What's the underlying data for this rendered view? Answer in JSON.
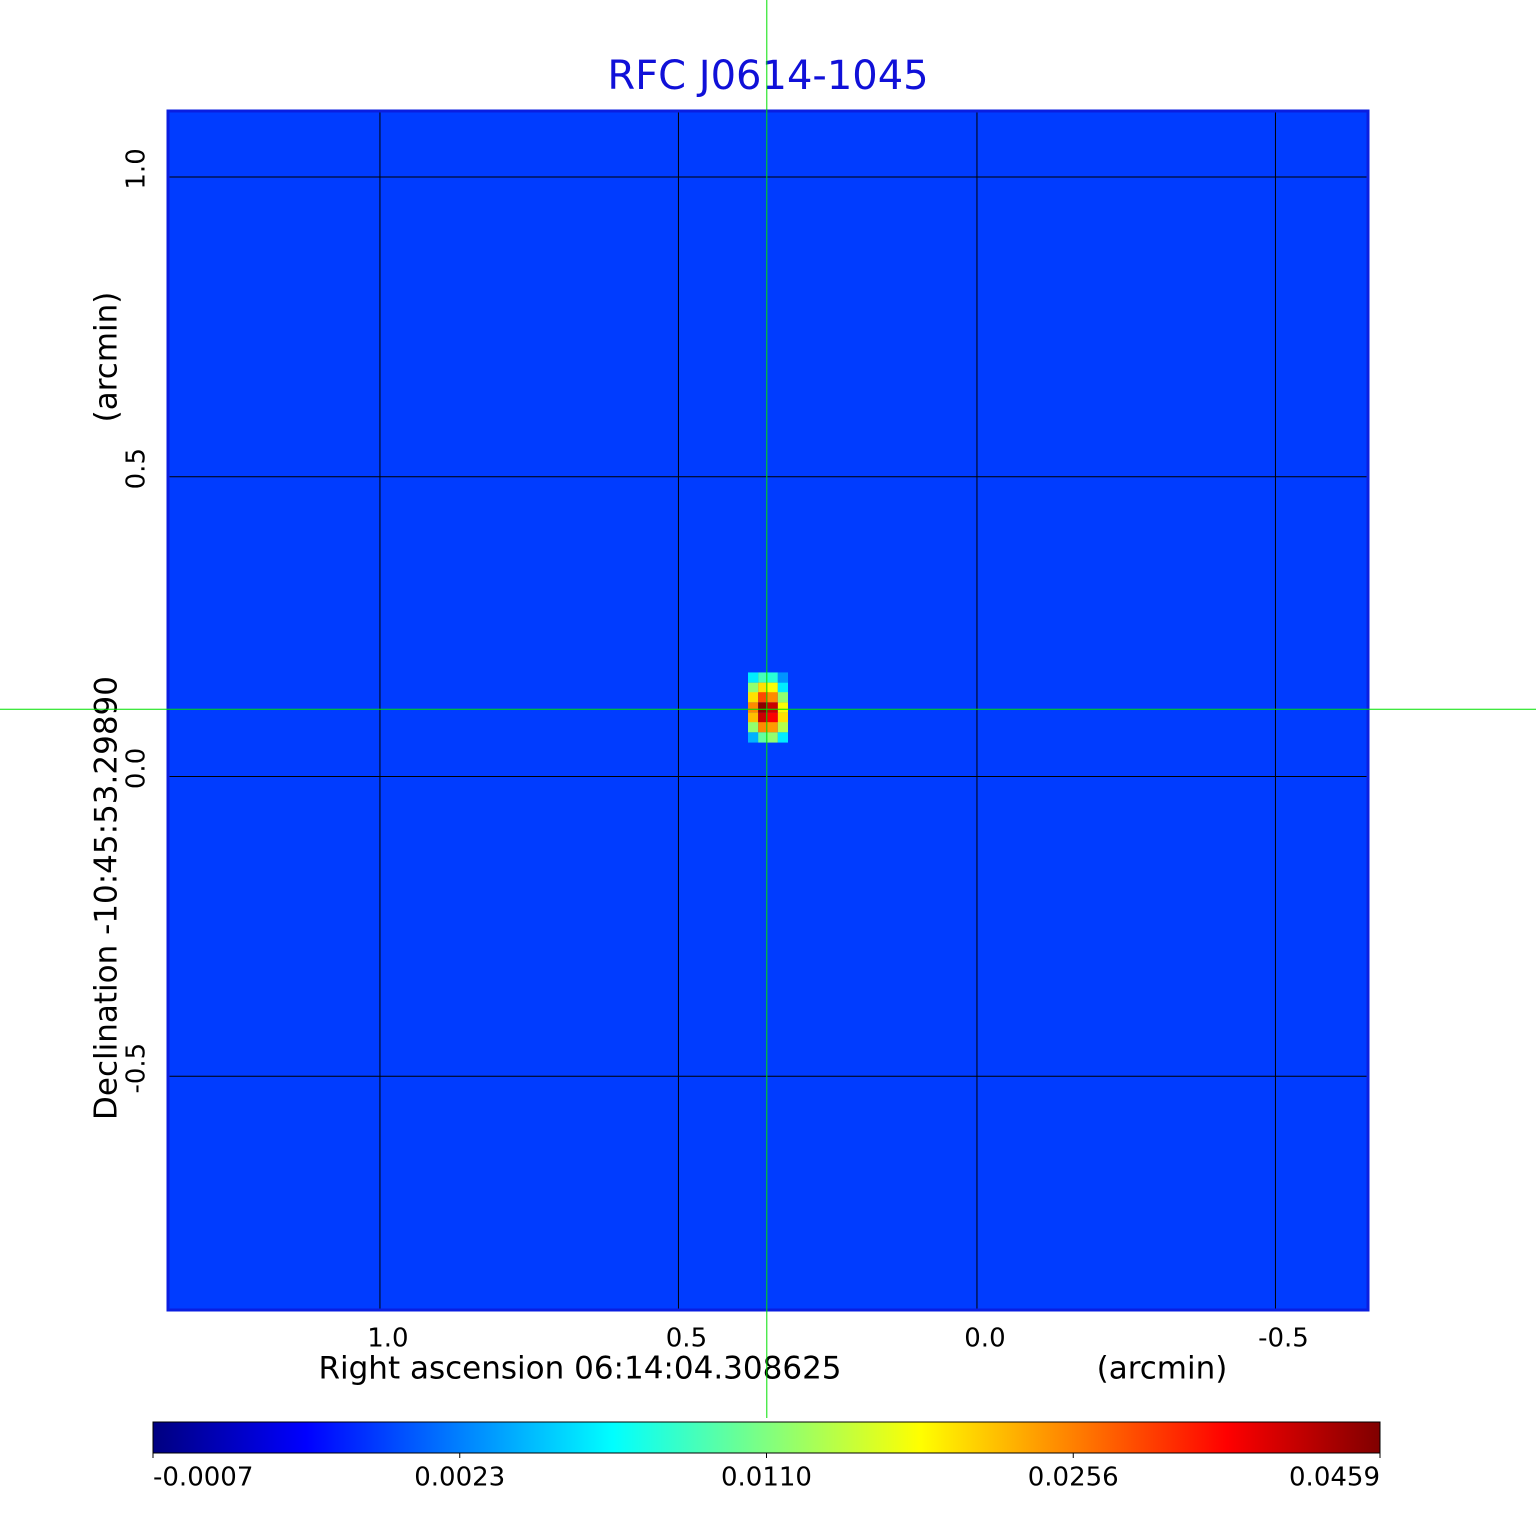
{
  "chart_data": {
    "type": "heatmap",
    "title": "RFC J0614-1045",
    "x_label": "Right ascension  06:14:04.308625",
    "x_unit": "(arcmin)",
    "y_label": "Declination  -10:45:53.29890",
    "y_unit": "(arcmin)",
    "xlim": [
      1.355,
      -0.655
    ],
    "ylim": [
      -0.89,
      1.11
    ],
    "xticks": [
      {
        "value": 1,
        "label": "1.0"
      },
      0.5,
      {
        "value": 0,
        "label": "0.0"
      },
      -0.5
    ],
    "yticks": [
      {
        "value": 1,
        "label": "1.0"
      },
      0.5,
      {
        "value": 0,
        "label": "0.0"
      },
      -0.5
    ],
    "grid": true,
    "colormap": "jet",
    "colorbar_ticks": [
      -0.0007,
      0.0023,
      {
        "value": 0.011,
        "label": "0.0110"
      },
      0.0256,
      0.0459
    ],
    "crosshair": {
      "x": 0.352,
      "y": 0.112,
      "color": "#00e000"
    },
    "image": {
      "background": 0.0015,
      "x": [
        0.375,
        0.358,
        0.342,
        0.325
      ],
      "y": [
        0.165,
        0.148,
        0.132,
        0.115,
        0.098,
        0.082,
        0.065
      ],
      "values": [
        [
          0.006,
          0.009,
          0.008,
          0.003
        ],
        [
          0.012,
          0.02,
          0.018,
          0.006
        ],
        [
          0.02,
          0.03,
          0.025,
          0.012
        ],
        [
          0.025,
          0.045,
          0.04,
          0.018
        ],
        [
          0.022,
          0.04,
          0.036,
          0.02
        ],
        [
          0.012,
          0.025,
          0.024,
          0.014
        ],
        [
          0.004,
          0.01,
          0.012,
          0.006
        ]
      ]
    }
  }
}
